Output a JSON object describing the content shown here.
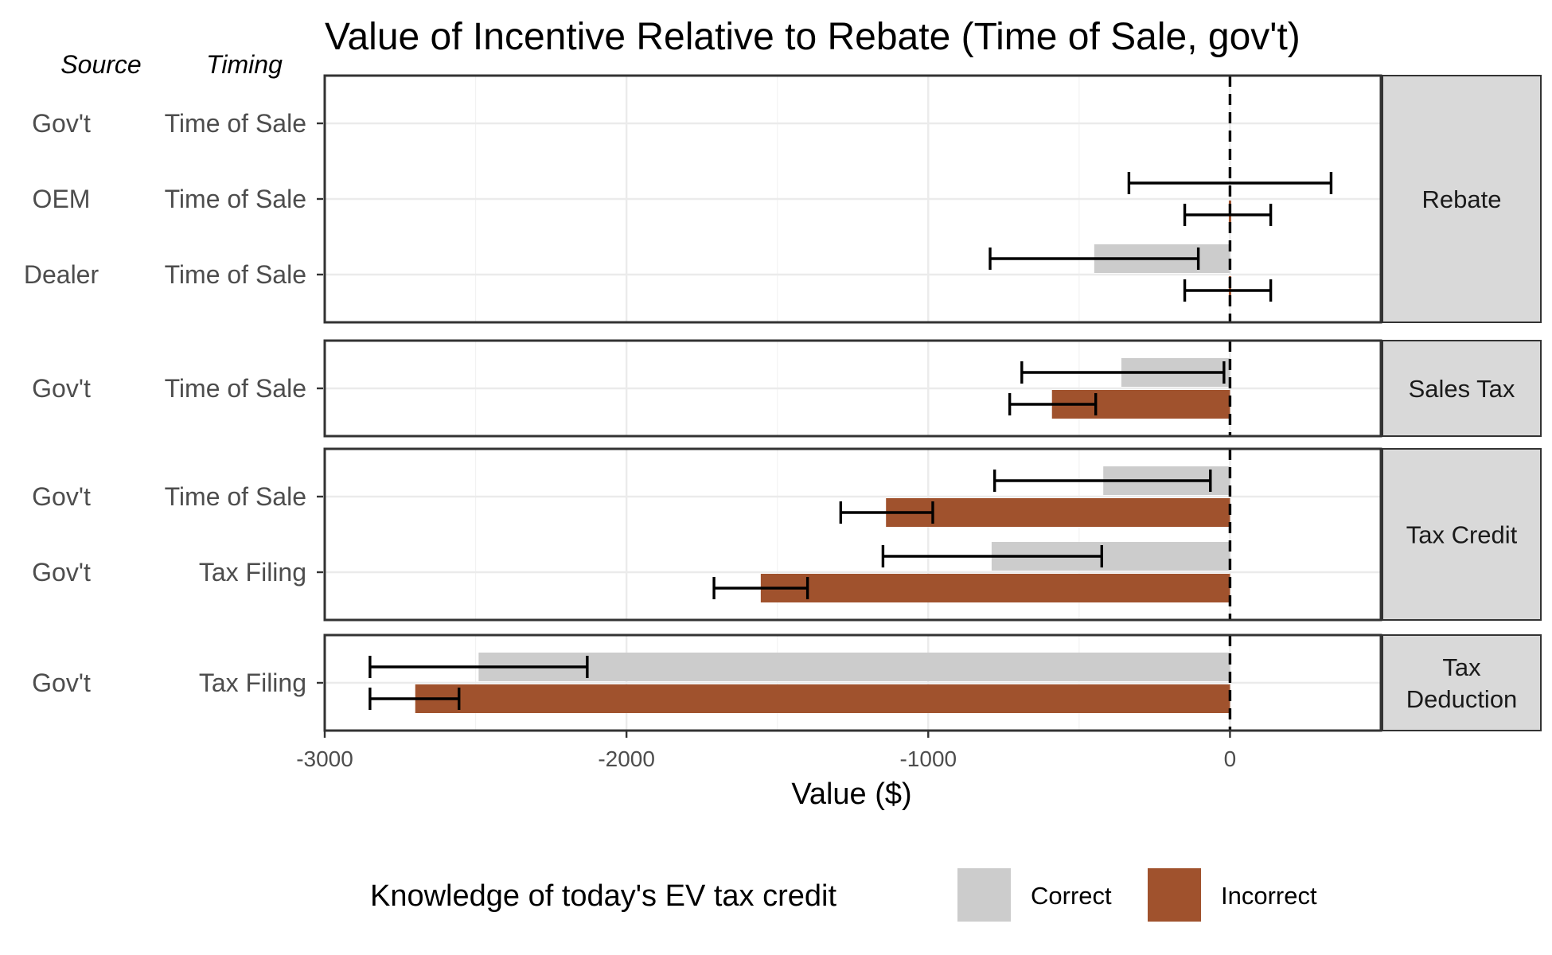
{
  "chart_data": {
    "type": "bar",
    "orientation": "horizontal",
    "title": "Value of Incentive Relative to Rebate (Time of Sale, gov't)",
    "xlabel": "Value ($)",
    "xlim": [
      -3000,
      500
    ],
    "xticks": [
      -3000,
      -2000,
      -1000,
      0
    ],
    "xtick_labels": [
      "-3000",
      "-2000",
      "-1000",
      "0"
    ],
    "reference_line_x": 0,
    "grid": true,
    "row_headers": {
      "source": "Source",
      "timing": "Timing"
    },
    "legend": {
      "title": "Knowledge of today's EV tax credit",
      "position": "bottom",
      "items": [
        {
          "name": "Correct",
          "color": "#cccccc"
        },
        {
          "name": "Incorrect",
          "color": "#a0522d"
        }
      ]
    },
    "panels": [
      {
        "label": "Rebate",
        "label_lines": [
          "Rebate"
        ],
        "rows": [
          {
            "source": "Gov't",
            "timing": "Time of Sale",
            "correct": {
              "value": 0,
              "ci": null
            },
            "incorrect": {
              "value": 0,
              "ci": null
            }
          },
          {
            "source": "OEM",
            "timing": "Time of Sale",
            "correct": {
              "value": 0,
              "ci": [
                -335,
                335
              ]
            },
            "incorrect": {
              "value": 0,
              "ci": [
                -150,
                135
              ]
            }
          },
          {
            "source": "Dealer",
            "timing": "Time of Sale",
            "correct": {
              "value": -450,
              "ci": [
                -795,
                -105
              ]
            },
            "incorrect": {
              "value": 0,
              "ci": [
                -150,
                135
              ]
            }
          }
        ]
      },
      {
        "label": "Sales Tax",
        "label_lines": [
          "Sales Tax"
        ],
        "rows": [
          {
            "source": "Gov't",
            "timing": "Time of Sale",
            "correct": {
              "value": -360,
              "ci": [
                -690,
                -20
              ]
            },
            "incorrect": {
              "value": -590,
              "ci": [
                -730,
                -445
              ]
            }
          }
        ]
      },
      {
        "label": "Tax Credit",
        "label_lines": [
          "Tax Credit"
        ],
        "rows": [
          {
            "source": "Gov't",
            "timing": "Time of Sale",
            "correct": {
              "value": -420,
              "ci": [
                -780,
                -65
              ]
            },
            "incorrect": {
              "value": -1140,
              "ci": [
                -1290,
                -985
              ]
            }
          },
          {
            "source": "Gov't",
            "timing": "Tax Filing",
            "correct": {
              "value": -790,
              "ci": [
                -1150,
                -425
              ]
            },
            "incorrect": {
              "value": -1555,
              "ci": [
                -1710,
                -1400
              ]
            }
          }
        ]
      },
      {
        "label": "Tax Deduction",
        "label_lines": [
          "Tax",
          "Deduction"
        ],
        "rows": [
          {
            "source": "Gov't",
            "timing": "Tax Filing",
            "correct": {
              "value": -2490,
              "ci": [
                -2850,
                -2130
              ]
            },
            "incorrect": {
              "value": -2700,
              "ci": [
                -2850,
                -2555
              ]
            }
          }
        ]
      }
    ]
  }
}
